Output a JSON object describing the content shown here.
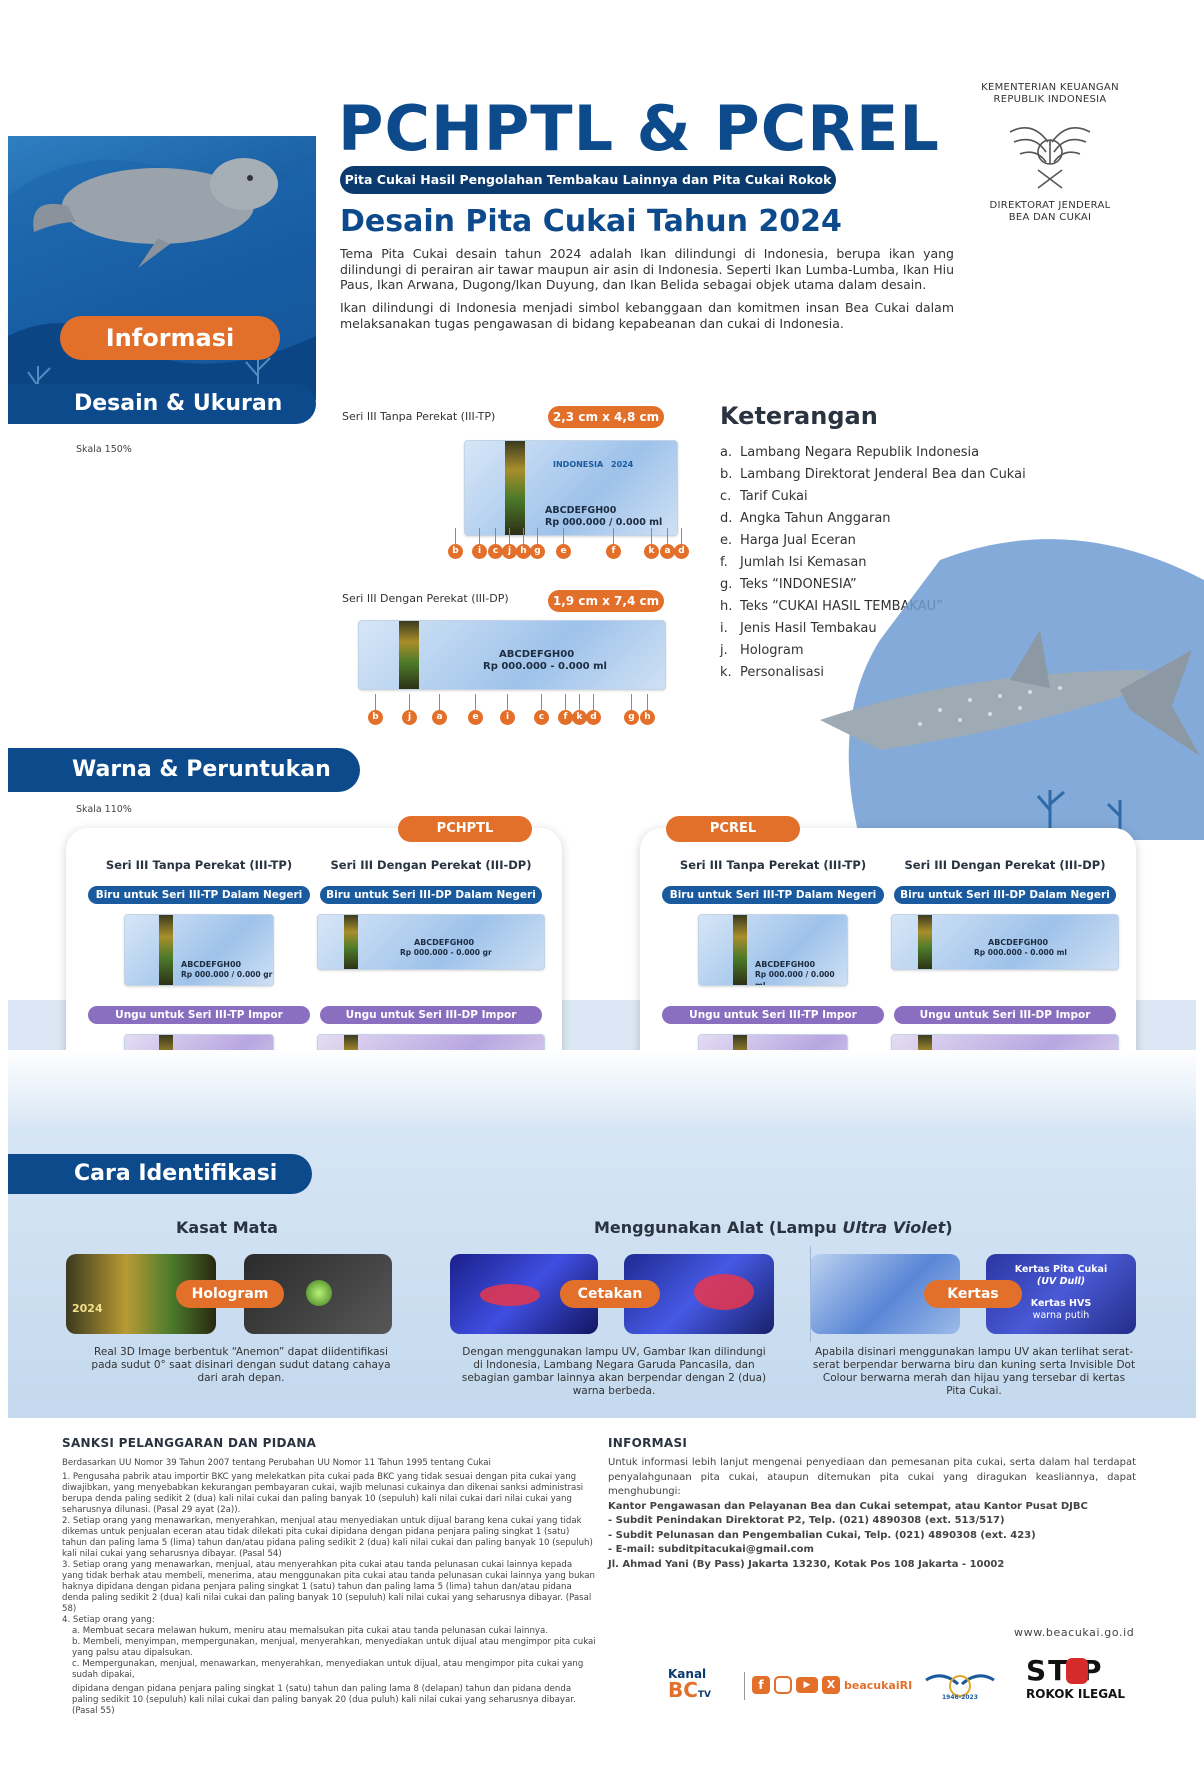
{
  "header": {
    "title": "PCHPTL & PCREL",
    "subtitle": "Pita Cukai Hasil Pengolahan Tembakau Lainnya dan Pita Cukai Rokok Elektrik",
    "heading": "Desain Pita Cukai Tahun 2024",
    "intro_1": "Tema Pita Cukai desain tahun 2024 adalah Ikan dilindungi di Indonesia, berupa ikan yang dilindungi di perairan air tawar maupun air asin di Indonesia. Seperti Ikan Lumba-Lumba, Ikan Hiu Paus, Ikan Arwana, Dugong/Ikan Duyung, dan Ikan Belida sebagai objek utama dalam desain.",
    "intro_2": "Ikan dilindungi di Indonesia menjadi simbol kebanggaan dan komitmen insan Bea Cukai dalam melaksanakan tugas pengawasan di bidang kepabeanan dan cukai di Indonesia.",
    "ministry_1": "KEMENTERIAN KEUANGAN",
    "ministry_2": "REPUBLIK INDONESIA",
    "dg_1": "DIREKTORAT JENDERAL",
    "dg_2": "BEA DAN CUKAI"
  },
  "sections": {
    "informasi": "Informasi",
    "desain": "Desain & Ukuran",
    "warna": "Warna & Peruntukan",
    "cara": "Cara Identifikasi"
  },
  "desain": {
    "scale": "Skala 150%",
    "tp_label": "Seri III Tanpa Perekat (III-TP)",
    "tp_size": "2,3 cm x 4,8 cm",
    "dp_label": "Seri III Dengan Perekat (III-DP)",
    "dp_size": "1,9 cm x 7,4 cm",
    "stamp_code": "ABCDEFGH00",
    "stamp_price": "Rp 000.000 / 0.000 ml",
    "stamp_price_dp": "Rp 000.000 - 0.000 ml",
    "stamp_country": "INDONESIA",
    "stamp_year": "2024",
    "tp_markers": [
      "b",
      "i",
      "c",
      "j",
      "h",
      "g",
      "e",
      "f",
      "k",
      "a",
      "d"
    ],
    "dp_markers": [
      "b",
      "j",
      "a",
      "e",
      "i",
      "c",
      "f",
      "k",
      "d",
      "g",
      "h"
    ]
  },
  "keterangan": {
    "title": "Keterangan",
    "items": [
      {
        "key": "a.",
        "text": "Lambang Negara Republik Indonesia"
      },
      {
        "key": "b.",
        "text": "Lambang Direktorat Jenderal Bea dan Cukai"
      },
      {
        "key": "c.",
        "text": "Tarif Cukai"
      },
      {
        "key": "d.",
        "text": "Angka Tahun Anggaran"
      },
      {
        "key": "e.",
        "text": "Harga Jual Eceran"
      },
      {
        "key": "f.",
        "text": "Jumlah Isi Kemasan"
      },
      {
        "key": "g.",
        "text": "Teks “INDONESIA”"
      },
      {
        "key": "h.",
        "text": "Teks “CUKAI HASIL TEMBAKAU”"
      },
      {
        "key": "i.",
        "text": "Jenis Hasil Tembakau"
      },
      {
        "key": "j.",
        "text": "Hologram"
      },
      {
        "key": "k.",
        "text": "Personalisasi"
      }
    ]
  },
  "warna": {
    "scale": "Skala 110%",
    "panels": [
      {
        "label": "PCHPTL",
        "col_tp": "Seri III Tanpa Perekat (III-TP)",
        "col_dp": "Seri III Dengan Perekat (III-DP)",
        "blue_tp": "Biru untuk Seri III-TP Dalam Negeri",
        "blue_dp": "Biru untuk Seri III-DP Dalam Negeri",
        "purple_tp": "Ungu untuk Seri III-TP Impor",
        "purple_dp": "Ungu untuk Seri III-DP Impor",
        "price_tp": "Rp 000.000 / 0.000 gr",
        "price_dp": "Rp 000.000 - 0.000 gr"
      },
      {
        "label": "PCREL",
        "col_tp": "Seri III Tanpa Perekat (III-TP)",
        "col_dp": "Seri III Dengan Perekat (III-DP)",
        "blue_tp": "Biru untuk Seri III-TP Dalam Negeri",
        "blue_dp": "Biru untuk Seri III-DP Dalam Negeri",
        "purple_tp": "Ungu untuk Seri III-TP Impor",
        "purple_dp": "Ungu untuk Seri III-DP Impor",
        "price_tp": "Rp 000.000 / 0.000 ml",
        "price_dp": "Rp 000.000 - 0.000 ml"
      }
    ],
    "stamp_code": "ABCDEFGH00"
  },
  "cara": {
    "kasat_mata": "Kasat Mata",
    "alat": "Menggunakan Alat (Lampu ",
    "alat_italic": "Ultra Violet",
    "alat_end": ")",
    "hologram": "Hologram",
    "cetakan": "Cetakan",
    "kertas": "Kertas",
    "kertas_note_1": "Kertas Pita Cukai",
    "kertas_note_2": "(UV Dull)",
    "kertas_note_3": "Kertas HVS",
    "kertas_note_4": "warna putih",
    "cap_1": "Real 3D Image berbentuk “Anemon” dapat diidentifikasi pada sudut 0° saat disinari dengan sudut datang cahaya dari arah depan.",
    "cap_2": "Dengan menggunakan lampu UV, Gambar Ikan dilindungi di Indonesia, Lambang Negara Garuda Pancasila, dan sebagian gambar lainnya akan berpendar dengan 2 (dua) warna berbeda.",
    "cap_3": "Apabila disinari menggunakan lampu UV akan terlihat serat-serat berpendar berwarna biru dan kuning serta Invisible Dot Colour berwarna merah dan hijau yang tersebar di kertas Pita Cukai.",
    "holo_year": "2024"
  },
  "sanksi": {
    "title": "SANKSI PELANGGARAN DAN PIDANA",
    "basis": "Berdasarkan UU Nomor 39 Tahun 2007 tentang Perubahan UU Nomor 11 Tahun 1995 tentang Cukai",
    "p1": "1. Pengusaha pabrik atau importir BKC yang melekatkan pita cukai pada BKC yang tidak sesuai dengan pita cukai yang diwajibkan, yang menyebabkan kekurangan pembayaran cukai, wajib melunasi cukainya dan dikenai sanksi administrasi berupa denda paling sedikit 2 (dua) kali nilai cukai dan paling banyak 10 (sepuluh) kali nilai cukai dari nilai cukai yang seharusnya dilunasi. (Pasal 29 ayat (2a)).",
    "p2": "2. Setiap orang yang menawarkan, menyerahkan, menjual atau menyediakan untuk dijual barang kena cukai yang tidak dikemas untuk penjualan eceran atau tidak dilekati pita cukai dipidana dengan pidana penjara paling singkat 1 (satu) tahun dan paling lama 5 (lima) tahun dan/atau pidana paling sedikit 2 (dua) kali nilai cukai dan paling banyak 10 (sepuluh) kali nilai cukai yang seharusnya dibayar. (Pasal 54)",
    "p3": "3. Setiap orang yang menawarkan, menjual, atau menyerahkan pita cukai atau tanda pelunasan cukai lainnya kepada yang tidak berhak atau membeli, menerima, atau menggunakan pita cukai atau tanda pelunasan cukai lainnya yang bukan haknya dipidana dengan pidana penjara paling singkat 1 (satu) tahun dan paling lama 5 (lima) tahun dan/atau pidana denda paling sedikit 2 (dua) kali nilai cukai dan paling banyak 10 (sepuluh) kali nilai cukai yang seharusnya dibayar. (Pasal 58)",
    "p4": "4. Setiap orang yang:",
    "p4a": "a. Membuat secara melawan hukum, meniru atau memalsukan pita cukai atau tanda pelunasan cukai lainnya.",
    "p4b": "b. Membeli, menyimpan, mempergunakan, menjual, menyerahkan, menyediakan untuk dijual atau mengimpor pita cukai yang palsu atau dipalsukan.",
    "p4c": "c. Mempergunakan, menjual, menawarkan, menyerahkan, menyediakan untuk dijual, atau mengimpor pita cukai yang sudah dipakai,",
    "p4d": "dipidana dengan pidana penjara paling singkat 1 (satu) tahun dan paling lama 8 (delapan) tahun dan pidana denda paling sedikit 10 (sepuluh) kali nilai cukai dan paling banyak 20 (dua puluh) kali nilai cukai yang seharusnya dibayar. (Pasal 55)"
  },
  "informasi_footer": {
    "title": "INFORMASI",
    "text": "Untuk informasi lebih lanjut mengenai penyediaan dan pemesanan pita cukai, serta dalam hal terdapat penyalahgunaan pita cukai, ataupun ditemukan pita cukai yang diragukan keasliannya, dapat menghubungi:",
    "l1": "Kantor Pengawasan dan Pelayanan Bea dan Cukai setempat, atau Kantor Pusat DJBC",
    "l2": "- Subdit Penindakan Direktorat P2, Telp. (021) 4890308 (ext. 513/517)",
    "l3": "- Subdit Pelunasan dan Pengembalian Cukai, Telp. (021) 4890308 (ext. 423)",
    "l4": "- E-mail: subditpitacukai@gmail.com",
    "l5": "Jl. Ahmad Yani (By Pass) Jakarta 13230, Kotak Pos 108 Jakarta - 10002"
  },
  "brand": {
    "website": "www.beacukai.go.id",
    "kanal": "Kanal",
    "bc": "BC",
    "tv": "TV",
    "handle": "beacukaiRI",
    "since": "1946-2023",
    "stop": "ST P",
    "rokok": "ROKOK ILEGAL",
    "colors": {
      "navy": "#0b3a6e",
      "orange": "#e2702a",
      "blue": "#1a5a9e",
      "purple": "#8a6fc1"
    }
  }
}
